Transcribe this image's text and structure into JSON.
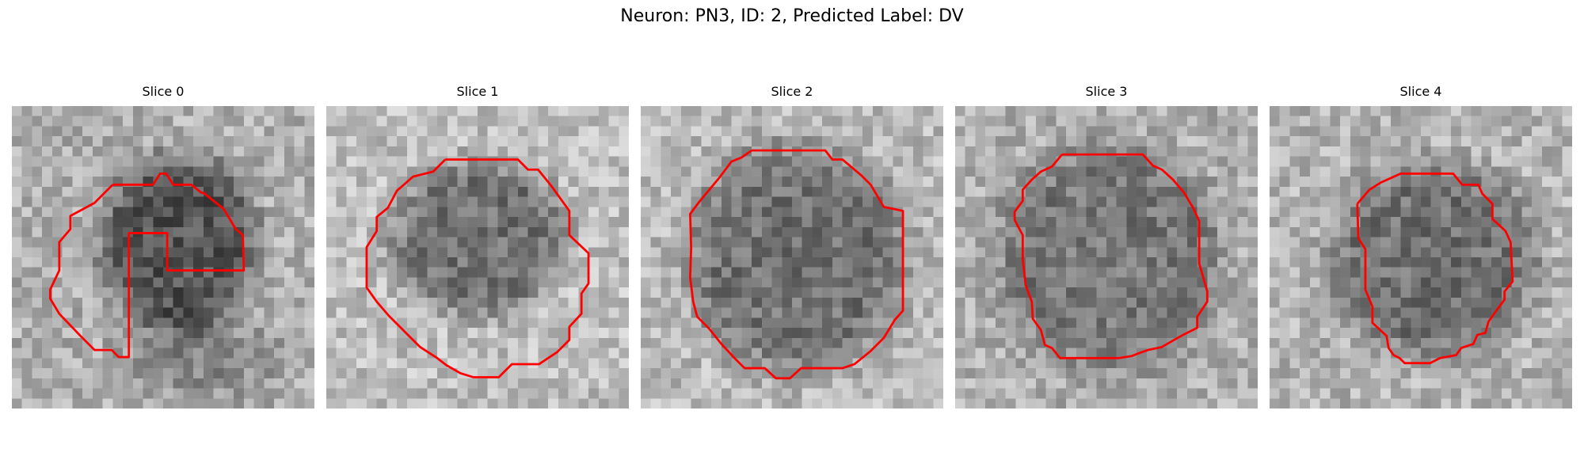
{
  "figure": {
    "title": "Neuron: PN3, ID: 2, Predicted Label: DV"
  },
  "panels": [
    {
      "title": "Slice 0"
    },
    {
      "title": "Slice 1"
    },
    {
      "title": "Slice 2"
    },
    {
      "title": "Slice 3"
    },
    {
      "title": "Slice 4"
    }
  ],
  "colors": {
    "contour": "#ff0000",
    "background": "#ffffff"
  },
  "image_style": "grayscale pixelated microscopy patch with red segmentation contour"
}
